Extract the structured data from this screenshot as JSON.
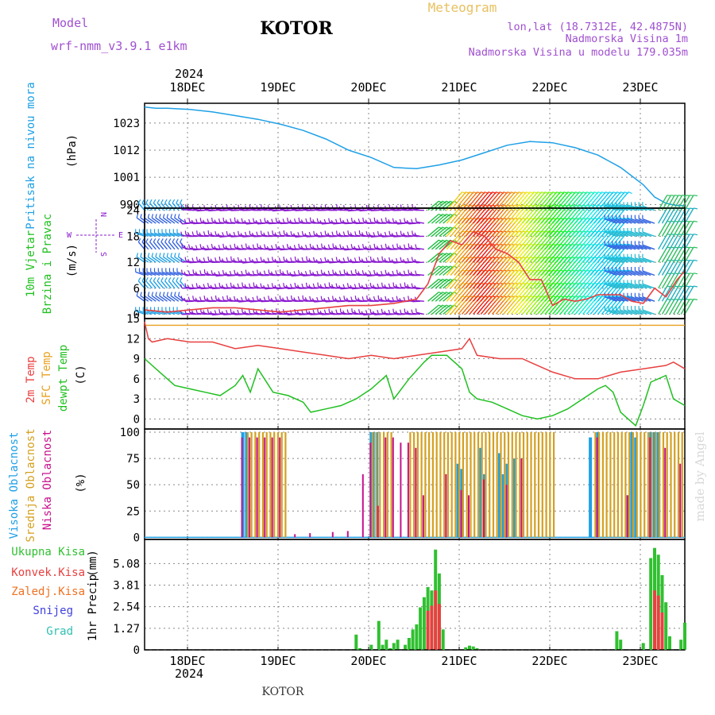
{
  "header": {
    "model_label": "Model",
    "model_name": "wrf-nmm_v3.9.1  e1km",
    "station": "KOTOR",
    "product": "Meteogram",
    "lonlat": "lon,lat (18.7312E, 42.4875N)",
    "elev": "Nadmorska Visina 1m",
    "model_elev": "Nadmorska Visina u modelu 179.035m",
    "year": "2024",
    "footer_station": "KOTOR",
    "watermark": "made by Angel"
  },
  "colors": {
    "pressure": "#1ea0e6",
    "wind_label": "#20c020",
    "wind_barb": "#8a1ad0",
    "temp2m": "#e84040",
    "sfc_temp": "#e8a020",
    "dewpt": "#20c020",
    "high_cloud": "#1ea0e6",
    "mid_cloud": "#d4a020",
    "low_cloud": "#c8108c",
    "total_precip": "#30c030",
    "conv_precip": "#e84040",
    "frz_precip": "#f07020",
    "snow": "#4040e0",
    "hail": "#30c0b0",
    "model_text": "#a050d0",
    "product_text": "#e8c060"
  },
  "chart_data": [
    {
      "type": "line",
      "panel": "pressure",
      "ylabel": "Pritisak na nivou mora",
      "unit": "(hPa)",
      "x_tick_labels": [
        "18DEC",
        "19DEC",
        "20DEC",
        "21DEC",
        "22DEC",
        "23DEC"
      ],
      "y_ticks": [
        990,
        1001,
        1012,
        1023
      ],
      "ylim": [
        988.5,
        1031
      ],
      "xlim_hours": [
        0,
        143
      ],
      "series": [
        {
          "x": [
            0,
            3,
            6,
            12,
            18,
            24,
            30,
            36,
            42,
            48,
            54,
            60,
            66,
            72,
            78,
            84,
            90,
            96,
            102,
            108,
            114,
            120,
            126,
            132,
            135,
            138,
            141,
            143
          ],
          "values": [
            1029.5,
            1029,
            1029,
            1028.5,
            1027.5,
            1026,
            1024.5,
            1022.5,
            1020,
            1016.5,
            1012,
            1009,
            1005,
            1004.5,
            1006,
            1008,
            1011,
            1014,
            1015.5,
            1015,
            1013,
            1010,
            1005,
            998,
            993,
            990.5,
            989.5,
            989.5
          ]
        }
      ]
    },
    {
      "type": "line",
      "panel": "wind",
      "ylabel_lines": [
        "10m Vjetar",
        "Brzina i Pravac"
      ],
      "unit": "(m/s)",
      "compass": [
        "W",
        "E",
        "N",
        "S"
      ],
      "y_ticks": [
        0,
        6,
        12,
        18,
        24
      ],
      "ylim": [
        -1,
        24.5
      ],
      "xlim_hours": [
        0,
        143
      ],
      "barb_levels": [
        0,
        3,
        6,
        9,
        12,
        15,
        18,
        21,
        24
      ],
      "series": [
        {
          "name": "speed",
          "x": [
            0,
            6,
            12,
            18,
            24,
            30,
            36,
            42,
            48,
            54,
            60,
            66,
            72,
            75,
            78,
            81,
            84,
            87,
            90,
            93,
            96,
            99,
            102,
            105,
            108,
            111,
            114,
            117,
            120,
            126,
            129,
            132,
            135,
            138,
            141,
            143
          ],
          "values": [
            1,
            0.5,
            1,
            1.5,
            1.5,
            1,
            0.5,
            1,
            1.5,
            2,
            2,
            2.5,
            3.5,
            7,
            14,
            17,
            16,
            19,
            18,
            15,
            14,
            12,
            8,
            8,
            2,
            3.5,
            3,
            3.5,
            4.5,
            4.5,
            3,
            2.5,
            6,
            4,
            8,
            10
          ]
        }
      ]
    },
    {
      "type": "line",
      "panel": "temperature",
      "ylabel_lines": [
        "2m Temp",
        "SFC Temp",
        "dewpt Temp"
      ],
      "unit": "(C)",
      "y_ticks": [
        0,
        3,
        6,
        9,
        12,
        15
      ],
      "ylim": [
        -1.5,
        15
      ],
      "xlim_hours": [
        0,
        143
      ],
      "series": [
        {
          "name": "2m Temp",
          "x": [
            0,
            1,
            2,
            6,
            12,
            18,
            24,
            30,
            36,
            42,
            48,
            54,
            60,
            66,
            72,
            78,
            84,
            86,
            88,
            94,
            100,
            102,
            108,
            114,
            120,
            126,
            132,
            138,
            140,
            143
          ],
          "values": [
            14.5,
            12,
            11.5,
            12,
            11.5,
            11.5,
            10.5,
            11,
            10.5,
            10,
            9.5,
            9,
            9.5,
            9,
            9.5,
            10,
            10.5,
            12,
            9.5,
            9,
            9,
            8.5,
            7,
            6,
            6,
            7,
            7.5,
            8,
            8.5,
            7.5
          ]
        },
        {
          "name": "SFC Temp",
          "x": [
            0,
            143
          ],
          "values": [
            14,
            14
          ]
        },
        {
          "name": "dewpt Temp",
          "x": [
            0,
            4,
            8,
            12,
            16,
            20,
            24,
            26,
            28,
            30,
            34,
            38,
            42,
            44,
            48,
            52,
            56,
            60,
            64,
            66,
            70,
            74,
            76,
            80,
            84,
            86,
            88,
            92,
            96,
            100,
            104,
            108,
            112,
            116,
            120,
            122,
            124,
            126,
            130,
            132,
            134,
            138,
            140,
            143
          ],
          "values": [
            9,
            7,
            5,
            4.5,
            4,
            3.5,
            5,
            6.5,
            4,
            7.5,
            4,
            3.5,
            2.5,
            1,
            1.5,
            2,
            3,
            4.5,
            6.5,
            3,
            6,
            8.5,
            9.5,
            9.5,
            7.5,
            4,
            3,
            2.5,
            1.5,
            0.5,
            0,
            0.5,
            1.5,
            3,
            4.5,
            5,
            4,
            1,
            -1,
            2,
            5.5,
            6.5,
            3,
            2
          ]
        }
      ]
    },
    {
      "type": "bar",
      "panel": "cloud",
      "ylabel_lines": [
        "Visoka Oblacnost",
        "Srednja Oblacnost",
        "Niska Oblacnost"
      ],
      "unit": "(%)",
      "y_ticks": [
        0,
        25,
        50,
        75,
        100
      ],
      "ylim": [
        -2,
        103
      ],
      "xlim_hours": [
        0,
        143
      ],
      "series": [
        {
          "name": "Visoka Oblacnost",
          "x": [
            26,
            27,
            60,
            60.5,
            61.5,
            83,
            84,
            89,
            90,
            94,
            95,
            96,
            98,
            118,
            120,
            128,
            129,
            130,
            134,
            135,
            136
          ],
          "values": [
            100,
            100,
            100,
            100,
            100,
            70,
            65,
            85,
            60,
            80,
            60,
            70,
            75,
            95,
            100,
            40,
            100,
            95,
            100,
            100,
            100
          ]
        },
        {
          "name": "Srednja Oblacnost",
          "x": [
            27,
            28,
            29,
            30,
            31,
            32,
            33,
            34,
            35,
            36,
            37,
            60,
            61,
            62,
            63,
            64,
            65,
            70,
            71,
            72,
            73,
            74,
            75,
            76,
            77,
            78,
            79,
            80,
            81,
            82,
            83,
            84,
            85,
            86,
            87,
            88,
            89,
            90,
            91,
            92,
            93,
            94,
            95,
            96,
            97,
            98,
            99,
            100,
            101,
            102,
            103,
            104,
            105,
            106,
            107,
            108,
            119,
            120,
            121,
            122,
            123,
            124,
            125,
            126,
            127,
            128,
            129,
            130,
            131,
            132,
            133,
            134,
            135,
            136,
            137,
            138,
            139,
            140,
            141,
            142
          ],
          "values": [
            100,
            100,
            100,
            100,
            100,
            100,
            100,
            100,
            100,
            100,
            100,
            100,
            100,
            100,
            100,
            100,
            100,
            100,
            100,
            100,
            100,
            100,
            100,
            100,
            100,
            100,
            100,
            100,
            100,
            100,
            100,
            100,
            100,
            100,
            100,
            100,
            100,
            100,
            100,
            100,
            100,
            100,
            100,
            100,
            100,
            100,
            100,
            100,
            100,
            100,
            100,
            100,
            100,
            100,
            100,
            100,
            100,
            100,
            100,
            100,
            100,
            100,
            100,
            100,
            100,
            100,
            100,
            100,
            100,
            100,
            100,
            100,
            100,
            100,
            100,
            100,
            100,
            100,
            100,
            100
          ]
        },
        {
          "name": "Niska Oblacnost",
          "x": [
            26,
            28,
            30,
            32,
            34,
            36,
            40,
            44,
            50,
            54,
            58,
            60,
            62,
            64,
            66,
            68,
            70,
            72,
            74,
            80,
            84,
            86,
            90,
            96,
            100,
            120,
            128,
            134,
            138,
            142
          ],
          "values": [
            95,
            95,
            95,
            95,
            95,
            95,
            3,
            4,
            5,
            6,
            60,
            90,
            30,
            95,
            95,
            90,
            90,
            85,
            40,
            60,
            45,
            40,
            55,
            50,
            75,
            95,
            40,
            95,
            85,
            70
          ]
        }
      ]
    },
    {
      "type": "bar",
      "panel": "precip",
      "ylabel": "1hr Precip",
      "unit": "(mm)",
      "legend": [
        "Ukupna Kisa",
        "Konvek.Kisa",
        "Zaledj.Kisa",
        "Snijeg",
        "Grad"
      ],
      "y_ticks": [
        "0",
        "1.27",
        "2.54",
        "3.81",
        "5.08"
      ],
      "ylim": [
        0,
        6.5
      ],
      "xlim_hours": [
        0,
        143
      ],
      "series": [
        {
          "name": "Ukupna Kisa",
          "x": [
            56,
            57,
            60,
            62,
            63,
            64,
            65,
            66,
            67,
            69,
            70,
            71,
            72,
            73,
            74,
            75,
            76,
            77,
            78,
            79,
            85,
            86,
            87,
            88,
            125,
            126,
            132,
            134,
            135,
            136,
            137,
            138,
            139,
            142,
            143
          ],
          "values": [
            0.9,
            0.1,
            0.3,
            1.7,
            0.3,
            0.6,
            0.1,
            0.4,
            0.6,
            0.3,
            0.7,
            1.2,
            1.5,
            2.5,
            3.1,
            3.7,
            3.5,
            5.9,
            4.5,
            1.2,
            0.15,
            0.25,
            0.2,
            0.1,
            1.1,
            0.6,
            0.4,
            5.4,
            6.0,
            5.6,
            4.4,
            2.8,
            0.8,
            0.6,
            1.6
          ]
        },
        {
          "name": "Konvek.Kisa",
          "x": [
            75,
            76,
            77,
            78,
            135,
            136,
            137
          ],
          "values": [
            2.3,
            2.6,
            3.5,
            2.7,
            3.5,
            3.2,
            2.2
          ]
        }
      ]
    }
  ]
}
